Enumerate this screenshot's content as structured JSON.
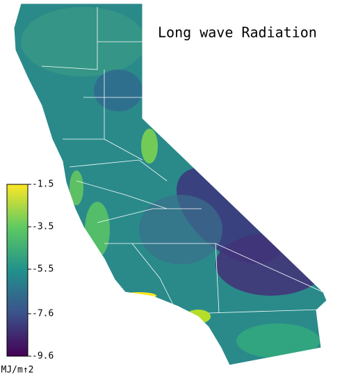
{
  "map": {
    "title": "Long wave Radiation",
    "colorbar": {
      "label": "MJ/m↑2",
      "lim": [
        -9.6,
        -1.5
      ],
      "ticks": [
        -1.5,
        -3.5,
        -5.5,
        -7.6,
        -9.6
      ],
      "colormap": "viridis"
    }
  }
}
